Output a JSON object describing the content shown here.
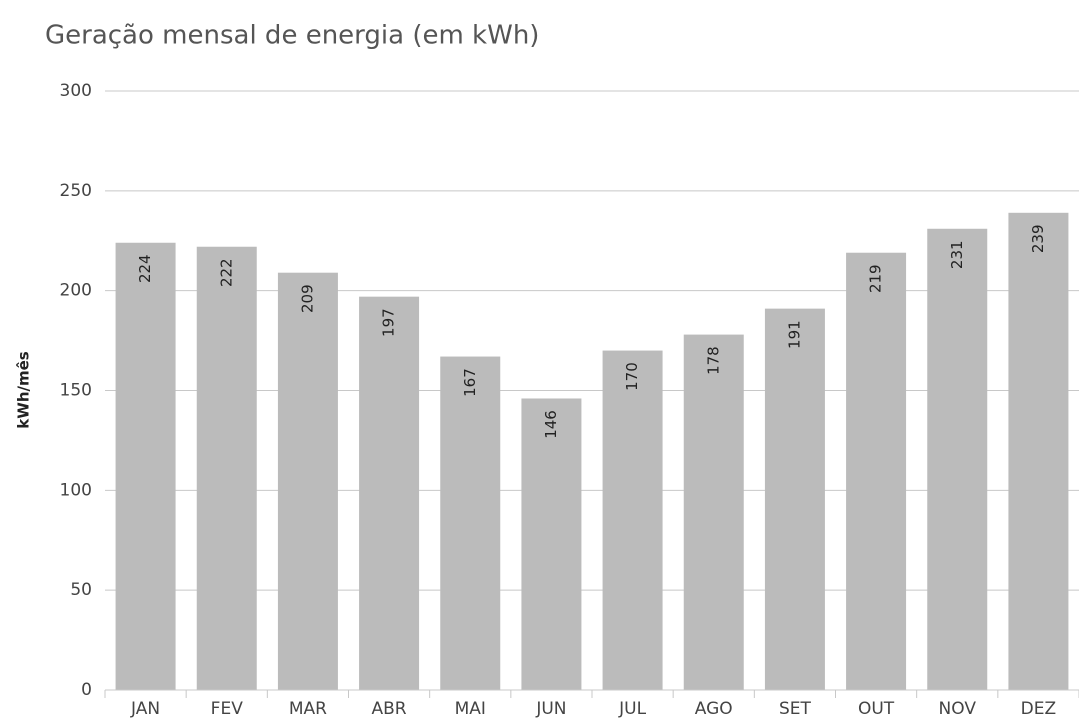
{
  "chart_data": {
    "type": "bar",
    "title": "Geração mensal de energia (em kWh)",
    "y_label": "kWh/mês",
    "categories": [
      "JAN",
      "FEV",
      "MAR",
      "ABR",
      "MAI",
      "JUN",
      "JUL",
      "AGO",
      "SET",
      "OUT",
      "NOV",
      "DEZ"
    ],
    "values": [
      224,
      222,
      209,
      197,
      167,
      146,
      170,
      178,
      191,
      219,
      231,
      239
    ],
    "color": "#bbbbbb",
    "ylim": [
      0,
      300
    ],
    "yticks": [
      0,
      50,
      100,
      150,
      200,
      250,
      300
    ],
    "grid": true
  }
}
